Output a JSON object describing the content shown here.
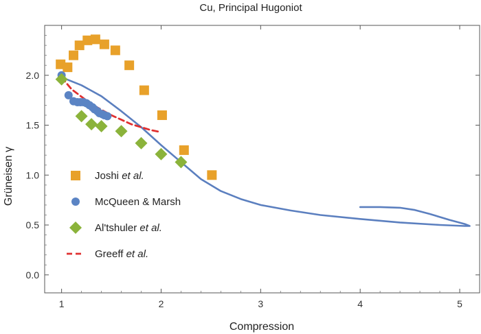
{
  "chart_data": {
    "type": "scatter",
    "title": "Cu, Principal Hugoniot",
    "xlabel": "Compression",
    "ylabel": "Grüneisen γ",
    "xlim": [
      0.83,
      5.2
    ],
    "ylim": [
      -0.18,
      2.5
    ],
    "x_ticks": [
      1,
      2,
      3,
      4,
      5
    ],
    "y_ticks": [
      0.0,
      0.5,
      1.0,
      1.5,
      2.0
    ],
    "x_tick_labels": [
      "1",
      "2",
      "3",
      "4",
      "5"
    ],
    "y_tick_labels": [
      "0.0",
      "0.5",
      "1.0",
      "1.5",
      "2.0"
    ],
    "grid": false,
    "legend_position": "left",
    "series": [
      {
        "name_main": "Joshi ",
        "name_italic": "et al.",
        "marker": "square",
        "color": "#e8a12a",
        "points": [
          [
            0.99,
            2.11
          ],
          [
            1.06,
            2.08
          ],
          [
            1.12,
            2.2
          ],
          [
            1.18,
            2.3
          ],
          [
            1.26,
            2.35
          ],
          [
            1.34,
            2.36
          ],
          [
            1.43,
            2.31
          ],
          [
            1.54,
            2.25
          ],
          [
            1.68,
            2.1
          ],
          [
            1.83,
            1.85
          ],
          [
            2.01,
            1.6
          ],
          [
            2.23,
            1.25
          ],
          [
            2.51,
            1.0
          ]
        ]
      },
      {
        "name_main": "McQueen & Marsh",
        "name_italic": "",
        "marker": "circle",
        "color": "#5b84c4",
        "points": [
          [
            1.0,
            2.0
          ],
          [
            1.07,
            1.8
          ],
          [
            1.12,
            1.74
          ],
          [
            1.16,
            1.73
          ],
          [
            1.19,
            1.73
          ],
          [
            1.22,
            1.73
          ],
          [
            1.25,
            1.72
          ],
          [
            1.28,
            1.7
          ],
          [
            1.31,
            1.68
          ],
          [
            1.33,
            1.66
          ],
          [
            1.36,
            1.64
          ],
          [
            1.38,
            1.62
          ],
          [
            1.41,
            1.61
          ],
          [
            1.43,
            1.6
          ],
          [
            1.46,
            1.59
          ]
        ]
      },
      {
        "name_main": "Al'tshuler ",
        "name_italic": "et al.",
        "marker": "diamond",
        "color": "#8bb33b",
        "points": [
          [
            1.0,
            1.96
          ],
          [
            1.2,
            1.59
          ],
          [
            1.3,
            1.51
          ],
          [
            1.4,
            1.49
          ],
          [
            1.6,
            1.44
          ],
          [
            1.8,
            1.32
          ],
          [
            2.0,
            1.21
          ],
          [
            2.2,
            1.13
          ]
        ]
      },
      {
        "name_main": "Greeff ",
        "name_italic": "et al.",
        "marker": "dashed-line",
        "color": "#e03030",
        "points": [
          [
            1.0,
            1.98
          ],
          [
            1.1,
            1.86
          ],
          [
            1.3,
            1.71
          ],
          [
            1.5,
            1.6
          ],
          [
            1.7,
            1.51
          ],
          [
            1.9,
            1.45
          ],
          [
            2.0,
            1.43
          ]
        ]
      },
      {
        "name_main": "",
        "name_italic": "",
        "marker": "solid-line",
        "color": "#5b7fbf",
        "points": [
          [
            1.0,
            1.98
          ],
          [
            1.2,
            1.9
          ],
          [
            1.4,
            1.79
          ],
          [
            1.6,
            1.64
          ],
          [
            1.8,
            1.48
          ],
          [
            2.0,
            1.3
          ],
          [
            2.2,
            1.13
          ],
          [
            2.4,
            0.96
          ],
          [
            2.6,
            0.84
          ],
          [
            2.8,
            0.76
          ],
          [
            3.0,
            0.7
          ],
          [
            3.3,
            0.645
          ],
          [
            3.6,
            0.6
          ],
          [
            4.0,
            0.56
          ],
          [
            4.4,
            0.525
          ],
          [
            4.8,
            0.5
          ],
          [
            5.05,
            0.49
          ],
          [
            5.1,
            0.49
          ],
          [
            5.05,
            0.51
          ],
          [
            4.9,
            0.55
          ],
          [
            4.7,
            0.61
          ],
          [
            4.55,
            0.65
          ],
          [
            4.4,
            0.673
          ],
          [
            4.2,
            0.68
          ],
          [
            4.0,
            0.68
          ]
        ]
      }
    ]
  }
}
